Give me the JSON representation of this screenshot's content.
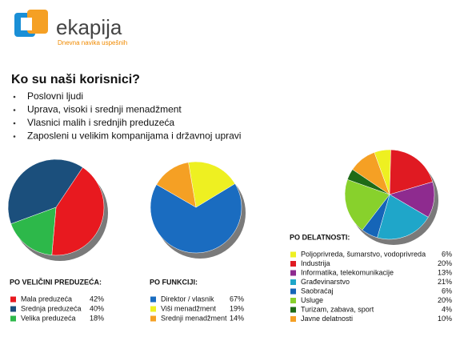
{
  "header": {
    "logo": "ekapija",
    "tagline": "Dnevna navika uspešnih"
  },
  "heading": "Ko su naši korisnici?",
  "bullets": [
    "Poslovni ljudi",
    "Uprava, visoki i srednji menadžment",
    "Vlasnici malih i srednjih preduzeća",
    "Zaposleni u velikim kompanijama i državnoj upravi"
  ],
  "chart_data": [
    {
      "type": "pie",
      "title": "PO VELIČINI PREDUZEĆA:",
      "categories": [
        "Mala preduzeća",
        "Srednja preduzeća",
        "Velika preduzeća"
      ],
      "values": [
        42,
        40,
        18
      ],
      "value_labels": [
        "42%",
        "40%",
        "18%"
      ],
      "colors": [
        "#e8191f",
        "#1b4f7c",
        "#2db84a"
      ]
    },
    {
      "type": "pie",
      "title": "PO FUNKCIJI:",
      "categories": [
        "Direktor / vlasnik",
        "Viši menadžment",
        "Srednji menadžment"
      ],
      "values": [
        67,
        19,
        14
      ],
      "value_labels": [
        "67%",
        "19%",
        "14%"
      ],
      "colors": [
        "#1a6cc0",
        "#eef021",
        "#f5a024"
      ]
    },
    {
      "type": "pie",
      "title": "PO DELATNOSTI:",
      "categories": [
        "Poljoprivreda, šumarstvo, vodoprivreda",
        "Industrija",
        "Informatika, telekomunikacije",
        "Građevinarstvo",
        "Saobraćaj",
        "Usluge",
        "Turizam, zabava, sport",
        "Javne delatnosti"
      ],
      "values": [
        6,
        20,
        13,
        21,
        6,
        20,
        4,
        10
      ],
      "value_labels": [
        "6%",
        "20%",
        "13%",
        "21%",
        "6%",
        "20%",
        "4%",
        "10%"
      ],
      "colors": [
        "#eef021",
        "#e01a22",
        "#8e2b8f",
        "#1fa6c9",
        "#1565b8",
        "#88d12c",
        "#1e6b16",
        "#f5a024"
      ]
    }
  ]
}
